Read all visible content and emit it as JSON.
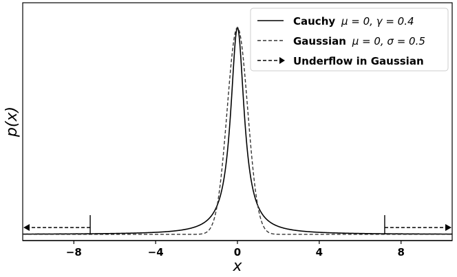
{
  "chart_data": {
    "type": "line",
    "xlabel": "x",
    "ylabel": "p(x)",
    "xlim": [
      -10.5,
      10.5
    ],
    "ylim": [
      -0.03,
      1.12
    ],
    "xticks": [
      -8,
      -4,
      0,
      4,
      8
    ],
    "xtick_labels": [
      "−8",
      "−4",
      "0",
      "4",
      "8"
    ],
    "grid": false,
    "legend_position": "top-right",
    "series": [
      {
        "name": "Cauchy μ = 0, γ = 0.4",
        "name_bold": "Cauchy",
        "name_math": "μ = 0,  γ = 0.4",
        "style": "solid",
        "color": "#000000",
        "x": [
          -10.5,
          -8,
          -6,
          -4,
          -3,
          -2,
          -1.5,
          -1,
          -0.8,
          -0.6,
          -0.4,
          -0.3,
          -0.2,
          -0.1,
          0,
          0.1,
          0.2,
          0.3,
          0.4,
          0.6,
          0.8,
          1,
          1.5,
          2,
          3,
          4,
          6,
          8,
          10.5
        ],
        "y": [
          0.0015,
          0.0025,
          0.0044,
          0.0099,
          0.0175,
          0.0385,
          0.0664,
          0.1379,
          0.2,
          0.3077,
          0.5,
          0.64,
          0.8,
          0.9412,
          1.0,
          0.9412,
          0.8,
          0.64,
          0.5,
          0.3077,
          0.2,
          0.1379,
          0.0664,
          0.0385,
          0.0175,
          0.0099,
          0.0044,
          0.0025,
          0.0015
        ]
      },
      {
        "name": "Gaussian μ = 0, σ = 0.5",
        "name_bold": "Gaussian",
        "name_math": "μ = 0,  σ = 0.5",
        "style": "dashed",
        "color": "#333333",
        "x": [
          -10.5,
          -2,
          -1.6,
          -1.4,
          -1.2,
          -1.0,
          -0.8,
          -0.6,
          -0.4,
          -0.2,
          0,
          0.2,
          0.4,
          0.6,
          0.8,
          1.0,
          1.2,
          1.4,
          1.6,
          2,
          10.5
        ],
        "y": [
          0,
          0.0003,
          0.006,
          0.0198,
          0.056,
          0.1353,
          0.278,
          0.4868,
          0.7261,
          0.9231,
          1.0,
          0.9231,
          0.7261,
          0.4868,
          0.278,
          0.1353,
          0.056,
          0.0198,
          0.006,
          0.0003,
          0
        ]
      }
    ],
    "annotations": {
      "label": "Underflow in Gaussian",
      "threshold_x": [
        -7.2,
        7.2
      ]
    }
  },
  "colors": {
    "line": "#000000",
    "gaussian": "#333333"
  }
}
